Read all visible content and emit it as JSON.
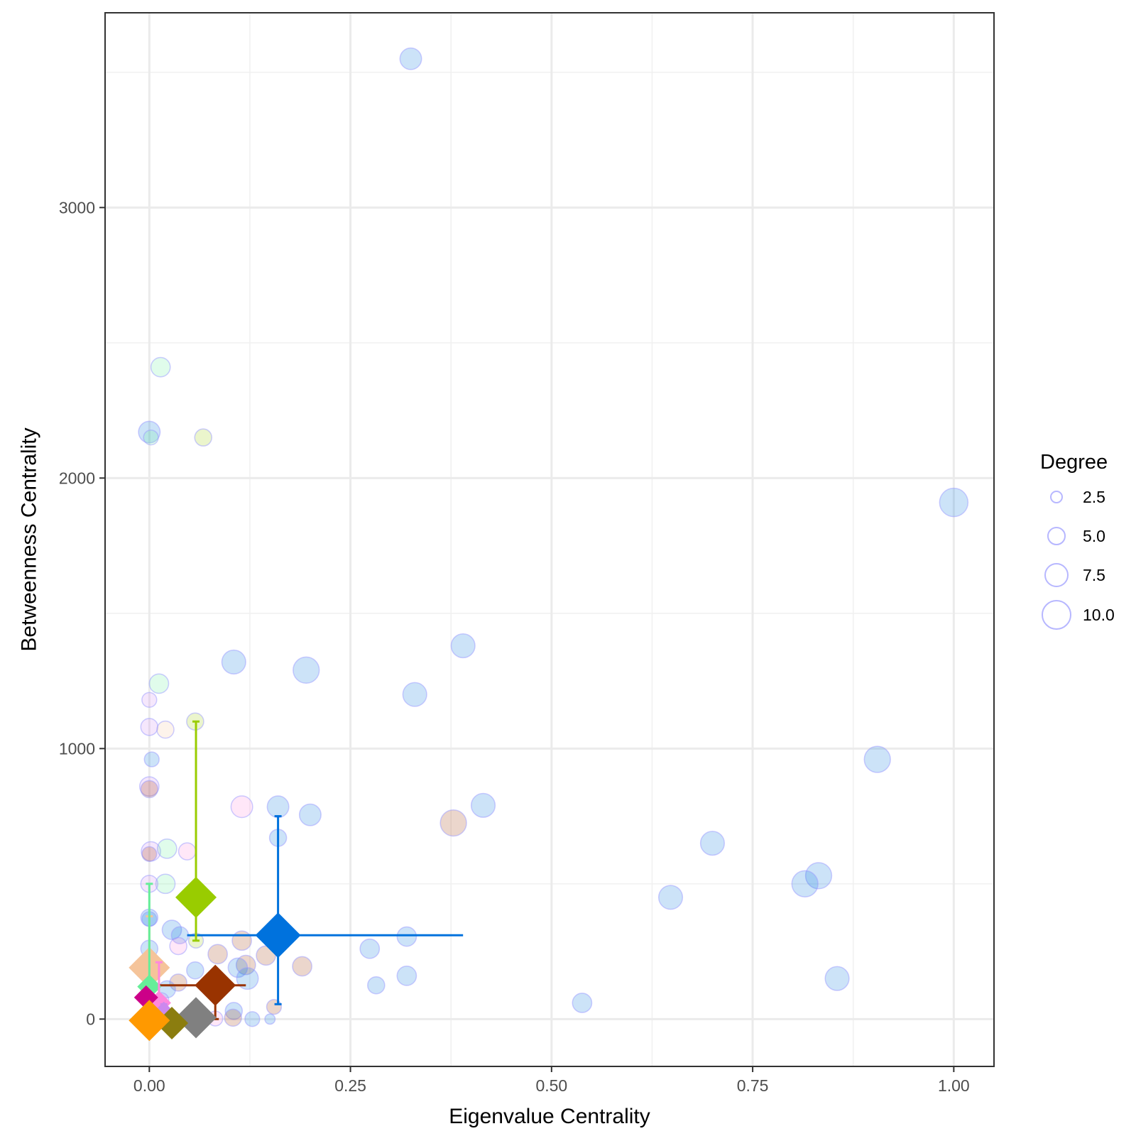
{
  "chart_data": {
    "type": "scatter",
    "title": "",
    "xlabel": "Eigenvalue Centrality",
    "ylabel": "Betweenness Centrality",
    "xlim": [
      -0.055,
      1.05
    ],
    "ylim": [
      -175,
      3720
    ],
    "x_ticks": [
      {
        "value": 0.0,
        "label": "0.00"
      },
      {
        "value": 0.25,
        "label": "0.25"
      },
      {
        "value": 0.5,
        "label": "0.50"
      },
      {
        "value": 0.75,
        "label": "0.75"
      },
      {
        "value": 1.0,
        "label": "1.00"
      }
    ],
    "y_ticks": [
      {
        "value": 0,
        "label": "0"
      },
      {
        "value": 1000,
        "label": "1000"
      },
      {
        "value": 2000,
        "label": "2000"
      },
      {
        "value": 3000,
        "label": "3000"
      }
    ],
    "grid": true,
    "legend": {
      "title": "Degree",
      "position": "right",
      "entries": [
        {
          "value": 2.5,
          "label": "2.5"
        },
        {
          "value": 5.0,
          "label": "5.0"
        },
        {
          "value": 7.5,
          "label": "7.5"
        },
        {
          "value": 10.0,
          "label": "10.0"
        }
      ]
    },
    "colors": {
      "blue": "#0072dd",
      "green": "#99cc00",
      "brown": "#993300",
      "peach": "#f5c49a",
      "gray": "#808080",
      "olive": "#8b7d0f",
      "orange": "#ff9900",
      "magenta": "#cc0088",
      "pink": "#ff88dd",
      "mint": "#66ee99",
      "lavender": "#cc88ee",
      "point_outline": "#9999ff"
    },
    "points": [
      {
        "x": 0.325,
        "y": 3550,
        "degree": 7,
        "color": "blue"
      },
      {
        "x": 0.014,
        "y": 2410,
        "degree": 6,
        "color": "mint"
      },
      {
        "x": 0.0,
        "y": 2170,
        "degree": 7,
        "color": "blue"
      },
      {
        "x": 0.002,
        "y": 2150,
        "degree": 4,
        "color": "mint"
      },
      {
        "x": 0.067,
        "y": 2150,
        "degree": 5,
        "color": "green"
      },
      {
        "x": 1.0,
        "y": 1910,
        "degree": 10,
        "color": "blue"
      },
      {
        "x": 0.39,
        "y": 1380,
        "degree": 8,
        "color": "blue"
      },
      {
        "x": 0.105,
        "y": 1320,
        "degree": 8,
        "color": "blue"
      },
      {
        "x": 0.195,
        "y": 1290,
        "degree": 9,
        "color": "blue"
      },
      {
        "x": 0.33,
        "y": 1200,
        "degree": 8,
        "color": "blue"
      },
      {
        "x": 0.012,
        "y": 1240,
        "degree": 6,
        "color": "mint"
      },
      {
        "x": 0.0,
        "y": 1180,
        "degree": 4,
        "color": "lavender"
      },
      {
        "x": 0.057,
        "y": 1100,
        "degree": 5,
        "color": "green"
      },
      {
        "x": 0.0,
        "y": 1080,
        "degree": 5,
        "color": "lavender"
      },
      {
        "x": 0.02,
        "y": 1070,
        "degree": 5,
        "color": "peach"
      },
      {
        "x": 0.003,
        "y": 960,
        "degree": 4,
        "color": "blue"
      },
      {
        "x": 0.905,
        "y": 960,
        "degree": 9,
        "color": "blue"
      },
      {
        "x": 0.0,
        "y": 860,
        "degree": 6,
        "color": "lavender"
      },
      {
        "x": 0.0,
        "y": 850,
        "degree": 5,
        "color": "brown"
      },
      {
        "x": 0.115,
        "y": 785,
        "degree": 7,
        "color": "pink"
      },
      {
        "x": 0.16,
        "y": 785,
        "degree": 7,
        "color": "blue"
      },
      {
        "x": 0.415,
        "y": 790,
        "degree": 8,
        "color": "blue"
      },
      {
        "x": 0.2,
        "y": 755,
        "degree": 7,
        "color": "blue"
      },
      {
        "x": 0.378,
        "y": 725,
        "degree": 9,
        "color": "brown"
      },
      {
        "x": 0.16,
        "y": 670,
        "degree": 5,
        "color": "blue"
      },
      {
        "x": 0.7,
        "y": 650,
        "degree": 8,
        "color": "blue"
      },
      {
        "x": 0.002,
        "y": 620,
        "degree": 6,
        "color": "lavender"
      },
      {
        "x": 0.022,
        "y": 630,
        "degree": 6,
        "color": "mint"
      },
      {
        "x": 0.047,
        "y": 620,
        "degree": 5,
        "color": "pink"
      },
      {
        "x": 0.0,
        "y": 610,
        "degree": 4,
        "color": "brown"
      },
      {
        "x": 0.832,
        "y": 530,
        "degree": 9,
        "color": "blue"
      },
      {
        "x": 0.815,
        "y": 500,
        "degree": 9,
        "color": "blue"
      },
      {
        "x": 0.02,
        "y": 500,
        "degree": 6,
        "color": "mint"
      },
      {
        "x": 0.0,
        "y": 500,
        "degree": 5,
        "color": "lavender"
      },
      {
        "x": 0.648,
        "y": 450,
        "degree": 8,
        "color": "blue"
      },
      {
        "x": 0.0,
        "y": 375,
        "degree": 5,
        "color": "blue"
      },
      {
        "x": 0.0,
        "y": 370,
        "degree": 4,
        "color": "blue"
      },
      {
        "x": 0.028,
        "y": 330,
        "degree": 6,
        "color": "blue"
      },
      {
        "x": 0.038,
        "y": 310,
        "degree": 5,
        "color": "blue"
      },
      {
        "x": 0.32,
        "y": 305,
        "degree": 6,
        "color": "blue"
      },
      {
        "x": 0.058,
        "y": 290,
        "degree": 4,
        "color": "green"
      },
      {
        "x": 0.115,
        "y": 290,
        "degree": 6,
        "color": "brown"
      },
      {
        "x": 0.274,
        "y": 260,
        "degree": 6,
        "color": "blue"
      },
      {
        "x": 0.036,
        "y": 270,
        "degree": 5,
        "color": "pink"
      },
      {
        "x": 0.0,
        "y": 260,
        "degree": 5,
        "color": "blue"
      },
      {
        "x": 0.085,
        "y": 240,
        "degree": 6,
        "color": "brown"
      },
      {
        "x": 0.145,
        "y": 235,
        "degree": 6,
        "color": "brown"
      },
      {
        "x": 0.12,
        "y": 200,
        "degree": 6,
        "color": "brown"
      },
      {
        "x": 0.11,
        "y": 190,
        "degree": 6,
        "color": "blue"
      },
      {
        "x": 0.19,
        "y": 195,
        "degree": 6,
        "color": "brown"
      },
      {
        "x": 0.057,
        "y": 180,
        "degree": 5,
        "color": "blue"
      },
      {
        "x": 0.122,
        "y": 150,
        "degree": 7,
        "color": "blue"
      },
      {
        "x": 0.32,
        "y": 160,
        "degree": 6,
        "color": "blue"
      },
      {
        "x": 0.855,
        "y": 150,
        "degree": 8,
        "color": "blue"
      },
      {
        "x": 0.036,
        "y": 135,
        "degree": 5,
        "color": "brown"
      },
      {
        "x": 0.282,
        "y": 125,
        "degree": 5,
        "color": "blue"
      },
      {
        "x": 0.022,
        "y": 110,
        "degree": 5,
        "color": "blue"
      },
      {
        "x": 0.155,
        "y": 45,
        "degree": 4,
        "color": "brown"
      },
      {
        "x": 0.538,
        "y": 60,
        "degree": 6,
        "color": "blue"
      },
      {
        "x": 0.105,
        "y": 30,
        "degree": 5,
        "color": "blue"
      },
      {
        "x": 0.104,
        "y": 5,
        "degree": 5,
        "color": "brown"
      },
      {
        "x": 0.082,
        "y": 2,
        "degree": 4,
        "color": "pink"
      },
      {
        "x": 0.128,
        "y": 0,
        "degree": 4,
        "color": "blue"
      },
      {
        "x": 0.15,
        "y": 0,
        "degree": 2,
        "color": "blue"
      },
      {
        "x": 0.03,
        "y": 0,
        "degree": 4,
        "color": "blue"
      },
      {
        "x": 0.005,
        "y": 55,
        "degree": 5,
        "color": "pink"
      },
      {
        "x": 0.015,
        "y": 70,
        "degree": 4,
        "color": "lavender"
      }
    ],
    "group_means": [
      {
        "color": "blue",
        "x": 0.16,
        "y": 310,
        "size": 8,
        "x_err": [
          0.047,
          0.39
        ],
        "y_err": [
          55,
          750
        ]
      },
      {
        "color": "green",
        "x": 0.058,
        "y": 450,
        "size": 7,
        "x_err": null,
        "y_err": [
          290,
          1100
        ]
      },
      {
        "color": "brown",
        "x": 0.082,
        "y": 125,
        "size": 7,
        "x_err": [
          0.005,
          0.12
        ],
        "y_err": [
          0,
          180
        ]
      },
      {
        "color": "peach",
        "x": 0.0,
        "y": 190,
        "size": 7,
        "x_err": null,
        "y_err": [
          0,
          380
        ]
      },
      {
        "color": "mint",
        "x": 0.0,
        "y": 120,
        "size": 3,
        "x_err": null,
        "y_err": [
          0,
          500
        ]
      },
      {
        "color": "pink",
        "x": 0.012,
        "y": 60,
        "size": 3,
        "x_err": null,
        "y_err": [
          0,
          210
        ]
      },
      {
        "color": "magenta",
        "x": -0.004,
        "y": 80,
        "size": 3,
        "x_err": null,
        "y_err": null
      },
      {
        "color": "lavender",
        "x": 0.018,
        "y": 20,
        "size": 3,
        "x_err": [
          0.0,
          0.03
        ],
        "y_err": [
          0,
          55
        ]
      },
      {
        "color": "gray",
        "x": 0.058,
        "y": 5,
        "size": 7,
        "x_err": null,
        "y_err": null
      },
      {
        "color": "olive",
        "x": 0.028,
        "y": -15,
        "size": 5,
        "x_err": null,
        "y_err": null
      },
      {
        "color": "orange",
        "x": 0.0,
        "y": -5,
        "size": 7,
        "x_err": null,
        "y_err": null
      }
    ]
  }
}
